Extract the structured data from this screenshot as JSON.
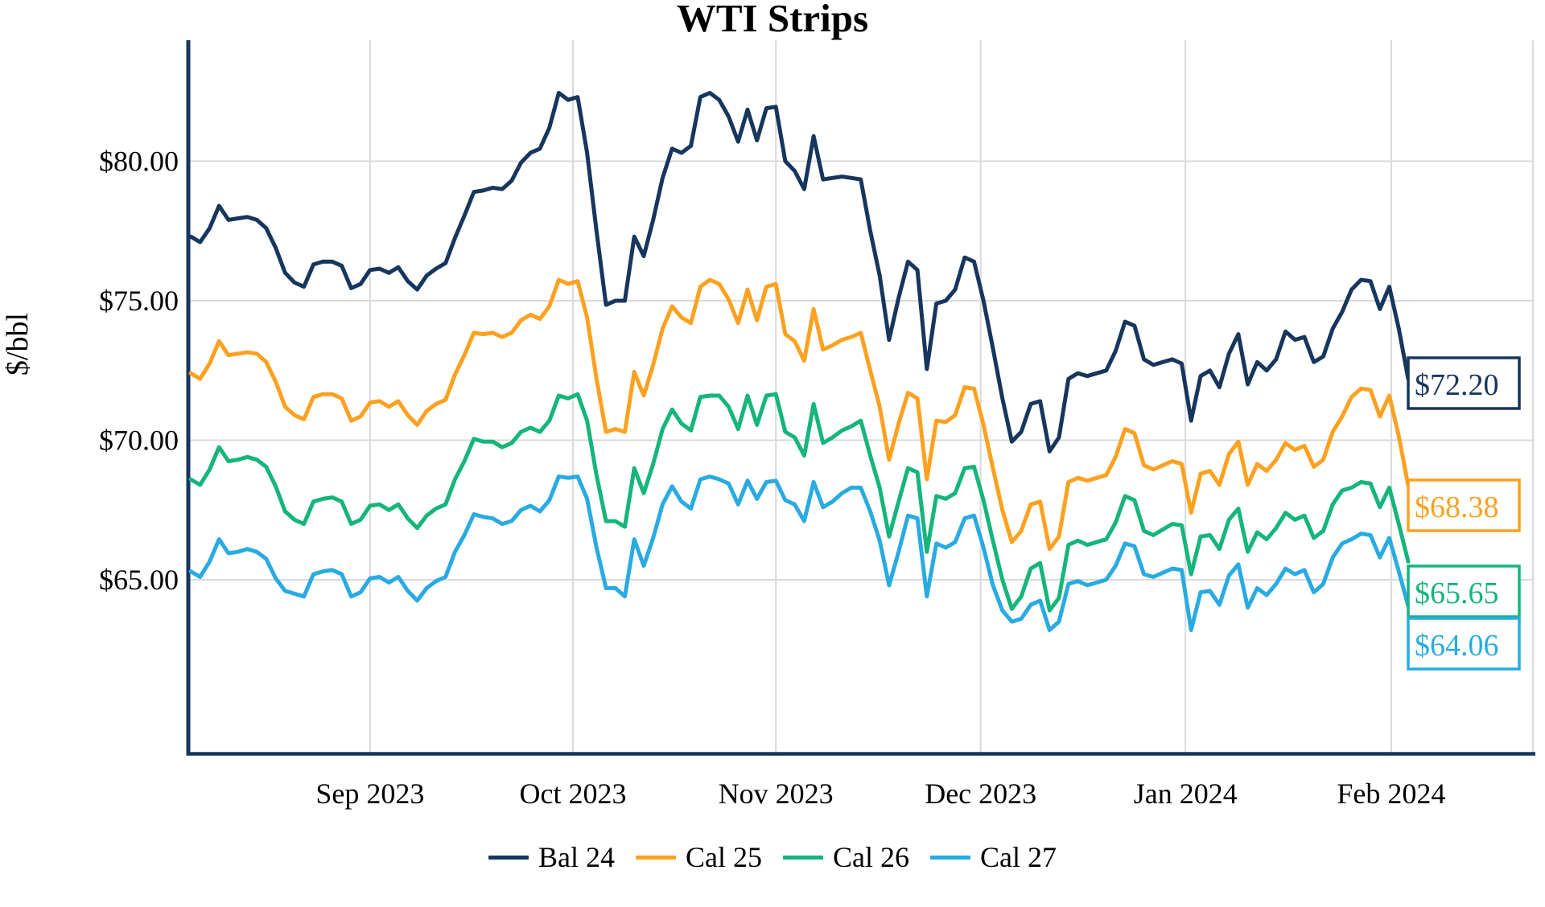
{
  "title": "WTI Strips",
  "y_axis": {
    "label": "$/bbl",
    "ticks": [
      {
        "value": 80,
        "label": "$80.00"
      },
      {
        "value": 75,
        "label": "$75.00"
      },
      {
        "value": 70,
        "label": "$70.00"
      },
      {
        "value": 65,
        "label": "$65.00"
      }
    ]
  },
  "x_axis": {
    "ticks": [
      {
        "label": "Sep 2023",
        "index": 19
      },
      {
        "label": "Oct 2023",
        "index": 40.5
      },
      {
        "label": "Nov 2023",
        "index": 62
      },
      {
        "label": "Dec 2023",
        "index": 83.7
      },
      {
        "label": "Jan 2024",
        "index": 105.4
      },
      {
        "label": "Feb 2024",
        "index": 127.2
      }
    ]
  },
  "colors": {
    "axis": "#17365d",
    "gridline": "#d9d9d9",
    "background": "#ffffff",
    "text": "#000000"
  },
  "chart_data": {
    "type": "line",
    "title": "WTI Strips",
    "xlabel": "",
    "ylabel": "$/bbl",
    "ylim": [
      58.8,
      84.3
    ],
    "grid": true,
    "legend_position": "bottom",
    "x_description": "daily points, early Aug 2023 through early Feb 2024",
    "series": [
      {
        "name": "Bal 24",
        "color": "#17365d",
        "end_label": "$72.20",
        "end_value": 72.2,
        "values": [
          77.3,
          77.1,
          77.6,
          78.4,
          77.9,
          77.95,
          78.0,
          77.9,
          77.6,
          76.9,
          76.0,
          75.65,
          75.5,
          76.3,
          76.4,
          76.4,
          76.25,
          75.45,
          75.6,
          76.1,
          76.15,
          76.0,
          76.2,
          75.7,
          75.4,
          75.9,
          76.15,
          76.35,
          77.25,
          78.05,
          78.9,
          78.95,
          79.05,
          79.0,
          79.3,
          79.95,
          80.3,
          80.45,
          81.2,
          82.45,
          82.2,
          82.3,
          80.3,
          77.5,
          74.85,
          75.0,
          75.0,
          77.3,
          76.6,
          77.9,
          79.4,
          80.45,
          80.3,
          80.55,
          82.3,
          82.45,
          82.2,
          81.6,
          80.7,
          81.85,
          80.75,
          81.9,
          81.95,
          80.0,
          79.65,
          79.0,
          80.9,
          79.35,
          79.4,
          79.45,
          79.4,
          79.35,
          77.5,
          75.9,
          73.6,
          75.1,
          76.4,
          76.1,
          72.55,
          74.9,
          75.0,
          75.4,
          76.55,
          76.4,
          75.0,
          73.3,
          71.5,
          69.95,
          70.3,
          71.3,
          71.4,
          69.6,
          70.1,
          72.2,
          72.4,
          72.3,
          72.4,
          72.5,
          73.2,
          74.25,
          74.1,
          72.9,
          72.7,
          72.8,
          72.9,
          72.75,
          70.7,
          72.3,
          72.5,
          71.9,
          73.1,
          73.8,
          72.0,
          72.8,
          72.5,
          72.9,
          73.9,
          73.6,
          73.7,
          72.8,
          73.0,
          74.0,
          74.6,
          75.4,
          75.75,
          75.7,
          74.7,
          75.5,
          74.0,
          72.2
        ]
      },
      {
        "name": "Cal 25",
        "color": "#fca120",
        "end_label": "$68.38",
        "end_value": 68.38,
        "values": [
          72.4,
          72.2,
          72.75,
          73.55,
          73.05,
          73.1,
          73.15,
          73.1,
          72.8,
          72.1,
          71.2,
          70.9,
          70.75,
          71.55,
          71.65,
          71.65,
          71.5,
          70.7,
          70.85,
          71.35,
          71.4,
          71.2,
          71.4,
          70.9,
          70.55,
          71.05,
          71.3,
          71.45,
          72.35,
          73.05,
          73.85,
          73.8,
          73.85,
          73.7,
          73.85,
          74.3,
          74.5,
          74.35,
          74.8,
          75.75,
          75.6,
          75.7,
          74.4,
          72.2,
          70.3,
          70.4,
          70.3,
          72.45,
          71.6,
          72.7,
          74.0,
          74.8,
          74.4,
          74.2,
          75.5,
          75.75,
          75.6,
          75.05,
          74.2,
          75.4,
          74.3,
          75.5,
          75.6,
          73.8,
          73.55,
          72.85,
          74.7,
          73.25,
          73.4,
          73.6,
          73.7,
          73.85,
          72.5,
          71.2,
          69.3,
          70.6,
          71.7,
          71.5,
          68.6,
          70.7,
          70.65,
          70.9,
          71.9,
          71.85,
          70.55,
          69.0,
          67.5,
          66.35,
          66.75,
          67.7,
          67.8,
          66.1,
          66.55,
          68.5,
          68.65,
          68.55,
          68.65,
          68.75,
          69.4,
          70.4,
          70.25,
          69.1,
          68.95,
          69.1,
          69.25,
          69.15,
          67.4,
          68.8,
          68.9,
          68.4,
          69.5,
          69.95,
          68.4,
          69.15,
          68.9,
          69.3,
          69.9,
          69.65,
          69.8,
          69.05,
          69.3,
          70.3,
          70.85,
          71.55,
          71.85,
          71.8,
          70.85,
          71.6,
          70.15,
          68.38
        ]
      },
      {
        "name": "Cal 26",
        "color": "#15b57b",
        "end_label": "$65.65",
        "end_value": 65.65,
        "values": [
          68.6,
          68.4,
          68.95,
          69.75,
          69.25,
          69.3,
          69.4,
          69.3,
          69.05,
          68.35,
          67.45,
          67.15,
          67.0,
          67.8,
          67.9,
          67.95,
          67.8,
          67.0,
          67.15,
          67.65,
          67.7,
          67.5,
          67.7,
          67.2,
          66.85,
          67.3,
          67.55,
          67.7,
          68.6,
          69.25,
          70.05,
          69.95,
          69.95,
          69.75,
          69.9,
          70.3,
          70.45,
          70.3,
          70.7,
          71.6,
          71.5,
          71.65,
          70.7,
          68.75,
          67.1,
          67.1,
          66.9,
          69.0,
          68.1,
          69.15,
          70.4,
          71.1,
          70.6,
          70.35,
          71.55,
          71.6,
          71.6,
          71.2,
          70.4,
          71.6,
          70.55,
          71.6,
          71.65,
          70.3,
          70.1,
          69.45,
          71.3,
          69.9,
          70.1,
          70.35,
          70.5,
          70.7,
          69.45,
          68.3,
          66.55,
          67.8,
          69.0,
          68.85,
          66.0,
          68.0,
          67.9,
          68.1,
          69.0,
          69.05,
          67.85,
          66.4,
          65.0,
          63.95,
          64.4,
          65.4,
          65.6,
          63.9,
          64.35,
          66.25,
          66.4,
          66.25,
          66.35,
          66.45,
          67.05,
          68.0,
          67.85,
          66.75,
          66.6,
          66.8,
          67.0,
          66.95,
          65.2,
          66.55,
          66.6,
          66.1,
          67.15,
          67.55,
          66.0,
          66.7,
          66.45,
          66.85,
          67.4,
          67.15,
          67.3,
          66.5,
          66.75,
          67.7,
          68.2,
          68.3,
          68.5,
          68.45,
          67.6,
          68.3,
          67.0,
          65.65
        ]
      },
      {
        "name": "Cal 27",
        "color": "#29abe2",
        "end_label": "$64.06",
        "end_value": 64.06,
        "values": [
          65.3,
          65.1,
          65.65,
          66.45,
          65.95,
          66.0,
          66.1,
          66.0,
          65.75,
          65.05,
          64.6,
          64.5,
          64.4,
          65.2,
          65.3,
          65.35,
          65.2,
          64.4,
          64.55,
          65.05,
          65.1,
          64.9,
          65.1,
          64.6,
          64.25,
          64.7,
          64.95,
          65.1,
          66.0,
          66.6,
          67.35,
          67.25,
          67.2,
          67.0,
          67.1,
          67.5,
          67.65,
          67.45,
          67.85,
          68.7,
          68.65,
          68.7,
          67.9,
          66.15,
          64.7,
          64.7,
          64.4,
          66.45,
          65.5,
          66.5,
          67.7,
          68.35,
          67.8,
          67.55,
          68.6,
          68.7,
          68.6,
          68.45,
          67.7,
          68.55,
          67.9,
          68.5,
          68.55,
          67.85,
          67.7,
          67.1,
          68.5,
          67.6,
          67.8,
          68.1,
          68.3,
          68.3,
          67.45,
          66.4,
          64.8,
          66.0,
          67.3,
          67.2,
          64.4,
          66.3,
          66.15,
          66.35,
          67.2,
          67.3,
          66.15,
          64.8,
          63.9,
          63.5,
          63.6,
          64.1,
          64.25,
          63.2,
          63.5,
          64.85,
          64.95,
          64.8,
          64.9,
          65.0,
          65.5,
          66.3,
          66.2,
          65.2,
          65.1,
          65.25,
          65.4,
          65.35,
          63.2,
          64.55,
          64.6,
          64.1,
          65.15,
          65.55,
          64.0,
          64.7,
          64.45,
          64.85,
          65.4,
          65.2,
          65.35,
          64.55,
          64.85,
          65.8,
          66.3,
          66.45,
          66.65,
          66.6,
          65.8,
          66.5,
          65.3,
          64.06
        ]
      }
    ]
  },
  "legend": {
    "items": [
      {
        "label": "Bal 24",
        "color": "#17365d"
      },
      {
        "label": "Cal 25",
        "color": "#fca120"
      },
      {
        "label": "Cal 26",
        "color": "#15b57b"
      },
      {
        "label": "Cal 27",
        "color": "#29abe2"
      }
    ]
  }
}
